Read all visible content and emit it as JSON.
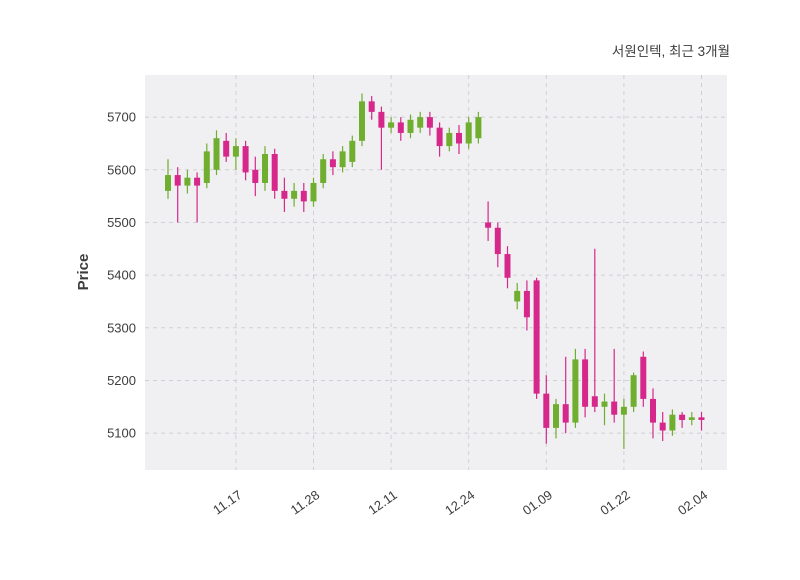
{
  "title": "서원인텍, 최근 3개월",
  "ylabel": "Price",
  "colors": {
    "up": "#6fae2f",
    "down": "#d6278b",
    "plot_bg": "#f0f0f2",
    "grid": "#cfcfd6",
    "text": "#3d3d3d"
  },
  "chart_data": {
    "type": "candlestick",
    "title": "서원인텍, 최근 3개월",
    "ylabel": "Price",
    "ylim": [
      5030,
      5780
    ],
    "y_ticks": [
      5100,
      5200,
      5300,
      5400,
      5500,
      5600,
      5700
    ],
    "x_tick_labels": [
      "11.17",
      "11.28",
      "12.11",
      "12.24",
      "01.09",
      "01.22",
      "02.04"
    ],
    "x_tick_indices": [
      7,
      15,
      23,
      31,
      39,
      47,
      55
    ],
    "legend": "none",
    "grid": "dashed",
    "candles_format": [
      "open",
      "high",
      "low",
      "close"
    ],
    "candles": [
      [
        5560,
        5620,
        5545,
        5590
      ],
      [
        5590,
        5605,
        5500,
        5570
      ],
      [
        5570,
        5600,
        5555,
        5585
      ],
      [
        5585,
        5595,
        5500,
        5570
      ],
      [
        5575,
        5650,
        5565,
        5635
      ],
      [
        5600,
        5675,
        5590,
        5660
      ],
      [
        5655,
        5670,
        5615,
        5625
      ],
      [
        5625,
        5660,
        5600,
        5645
      ],
      [
        5645,
        5655,
        5580,
        5595
      ],
      [
        5600,
        5625,
        5550,
        5575
      ],
      [
        5575,
        5645,
        5560,
        5630
      ],
      [
        5630,
        5640,
        5545,
        5560
      ],
      [
        5560,
        5585,
        5520,
        5545
      ],
      [
        5545,
        5575,
        5530,
        5560
      ],
      [
        5560,
        5575,
        5520,
        5540
      ],
      [
        5540,
        5585,
        5530,
        5575
      ],
      [
        5575,
        5630,
        5565,
        5620
      ],
      [
        5620,
        5635,
        5590,
        5605
      ],
      [
        5605,
        5645,
        5595,
        5635
      ],
      [
        5615,
        5665,
        5605,
        5655
      ],
      [
        5655,
        5745,
        5645,
        5730
      ],
      [
        5730,
        5740,
        5695,
        5710
      ],
      [
        5710,
        5720,
        5600,
        5680
      ],
      [
        5680,
        5700,
        5670,
        5690
      ],
      [
        5690,
        5700,
        5655,
        5670
      ],
      [
        5670,
        5705,
        5660,
        5695
      ],
      [
        5680,
        5710,
        5670,
        5700
      ],
      [
        5700,
        5710,
        5665,
        5680
      ],
      [
        5680,
        5690,
        5625,
        5645
      ],
      [
        5645,
        5680,
        5635,
        5670
      ],
      [
        5670,
        5685,
        5630,
        5650
      ],
      [
        5650,
        5700,
        5640,
        5690
      ],
      [
        5660,
        5710,
        5650,
        5700
      ],
      [
        5500,
        5540,
        5465,
        5490
      ],
      [
        5490,
        5500,
        5415,
        5440
      ],
      [
        5440,
        5455,
        5375,
        5395
      ],
      [
        5350,
        5385,
        5335,
        5370
      ],
      [
        5370,
        5390,
        5295,
        5320
      ],
      [
        5390,
        5395,
        5165,
        5175
      ],
      [
        5175,
        5210,
        5080,
        5110
      ],
      [
        5110,
        5165,
        5090,
        5155
      ],
      [
        5155,
        5245,
        5100,
        5120
      ],
      [
        5120,
        5260,
        5110,
        5240
      ],
      [
        5240,
        5260,
        5130,
        5150
      ],
      [
        5170,
        5450,
        5140,
        5150
      ],
      [
        5150,
        5175,
        5115,
        5160
      ],
      [
        5160,
        5260,
        5120,
        5135
      ],
      [
        5135,
        5165,
        5070,
        5150
      ],
      [
        5150,
        5215,
        5140,
        5210
      ],
      [
        5245,
        5255,
        5150,
        5165
      ],
      [
        5165,
        5185,
        5090,
        5120
      ],
      [
        5120,
        5140,
        5085,
        5105
      ],
      [
        5105,
        5145,
        5095,
        5135
      ],
      [
        5135,
        5140,
        5110,
        5125
      ],
      [
        5125,
        5140,
        5115,
        5130
      ],
      [
        5130,
        5140,
        5105,
        5125
      ]
    ]
  }
}
